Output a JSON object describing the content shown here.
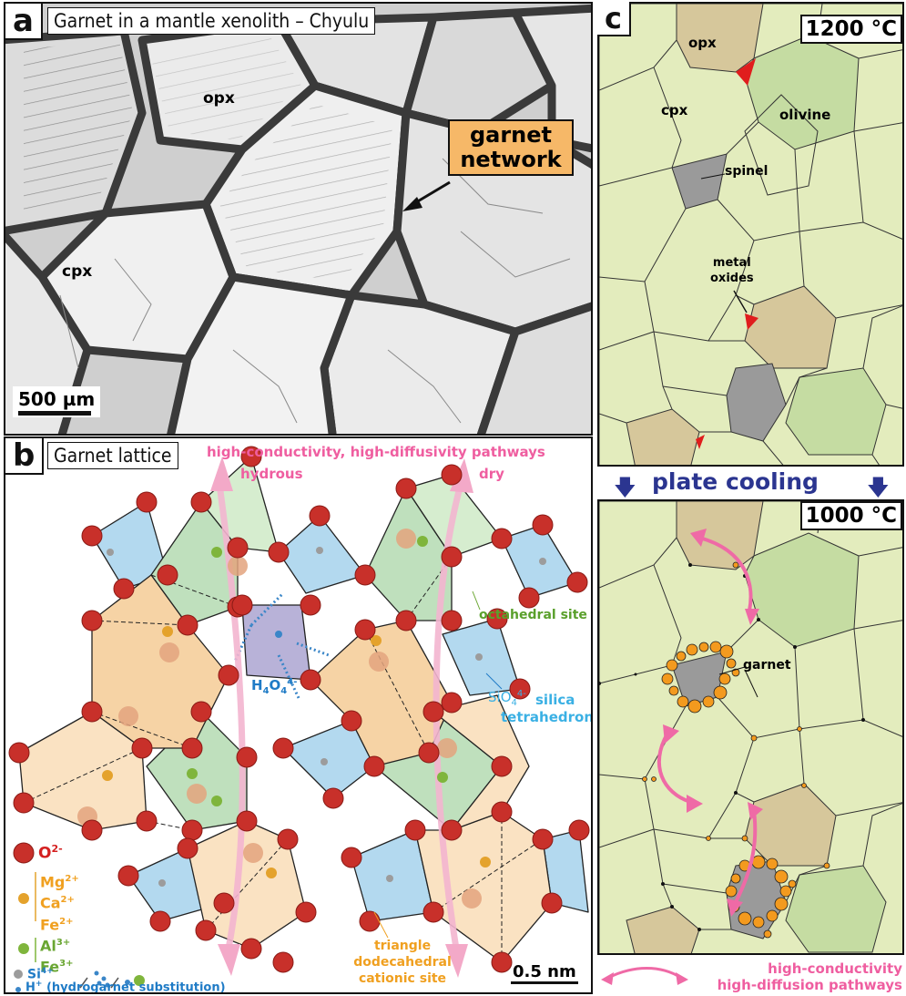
{
  "panel_a": {
    "letter": "a",
    "title": "Garnet in a mantle xenolith – Chyulu",
    "labels": {
      "opx": "opx",
      "cpx": "cpx"
    },
    "callout_line1": "garnet",
    "callout_line2": "network",
    "scalebar": "500 µm"
  },
  "panel_b": {
    "letter": "b",
    "title": "Garnet lattice",
    "pathways_title": "high-conductivity, high-diffusivity pathways",
    "hydrous": "hydrous",
    "dry": "dry",
    "octahedral": "octahedral site",
    "h4o4_base": "H",
    "h4o4_sub": "4",
    "h4o4_o": "O",
    "h4o4_sub2": "4",
    "h4o4_sup": "4-",
    "sio4_base": "SiO",
    "sio4_sub": "4",
    "sio4_sup": "4-",
    "silica1": "silica",
    "silica2": "tetrahedron",
    "triangle1": "triangle",
    "triangle2": "dodecahedral",
    "triangle3": "cationic site",
    "scalebar": "0.5 nm",
    "legend": {
      "o": "O",
      "o_sup": "2-",
      "mg": "Mg",
      "mg_sup": "2+",
      "ca": "Ca",
      "ca_sup": "2+",
      "fe": "Fe",
      "fe_sup": "2+",
      "al": "Al",
      "al_sup": "3+",
      "fe3": "Fe",
      "fe3_sup": "3+",
      "si": "Si",
      "si_sup": "4+",
      "h": "H",
      "h_sup": "+",
      "h_note": " (hydrogarnet substitution)"
    }
  },
  "panel_c": {
    "letter": "c",
    "temp_top": "1200 °C",
    "temp_bottom": "1000 °C",
    "opx": "opx",
    "olivine": "olivine",
    "cpx": "cpx",
    "spinel": "spinel",
    "metal1": "metal",
    "metal2": "oxides",
    "plate_cooling": "plate cooling",
    "garnet": "garnet",
    "bottom1": "high-conductivity",
    "bottom2": "high-diffusion pathways"
  },
  "colors": {
    "cpx": "#e3ecbd",
    "opx": "#d6c79b",
    "olivine": "#c5dca2",
    "spinel": "#9a9a9a",
    "oxide": "#e01d1d",
    "garnet": "#f39a1e",
    "pink": "#ef6aa6",
    "navy": "#2b3590",
    "oxygen": "#c8302a",
    "orange_label": "#f0a020",
    "green_label": "#6aa632",
    "blue_label": "#1f7bc6"
  }
}
